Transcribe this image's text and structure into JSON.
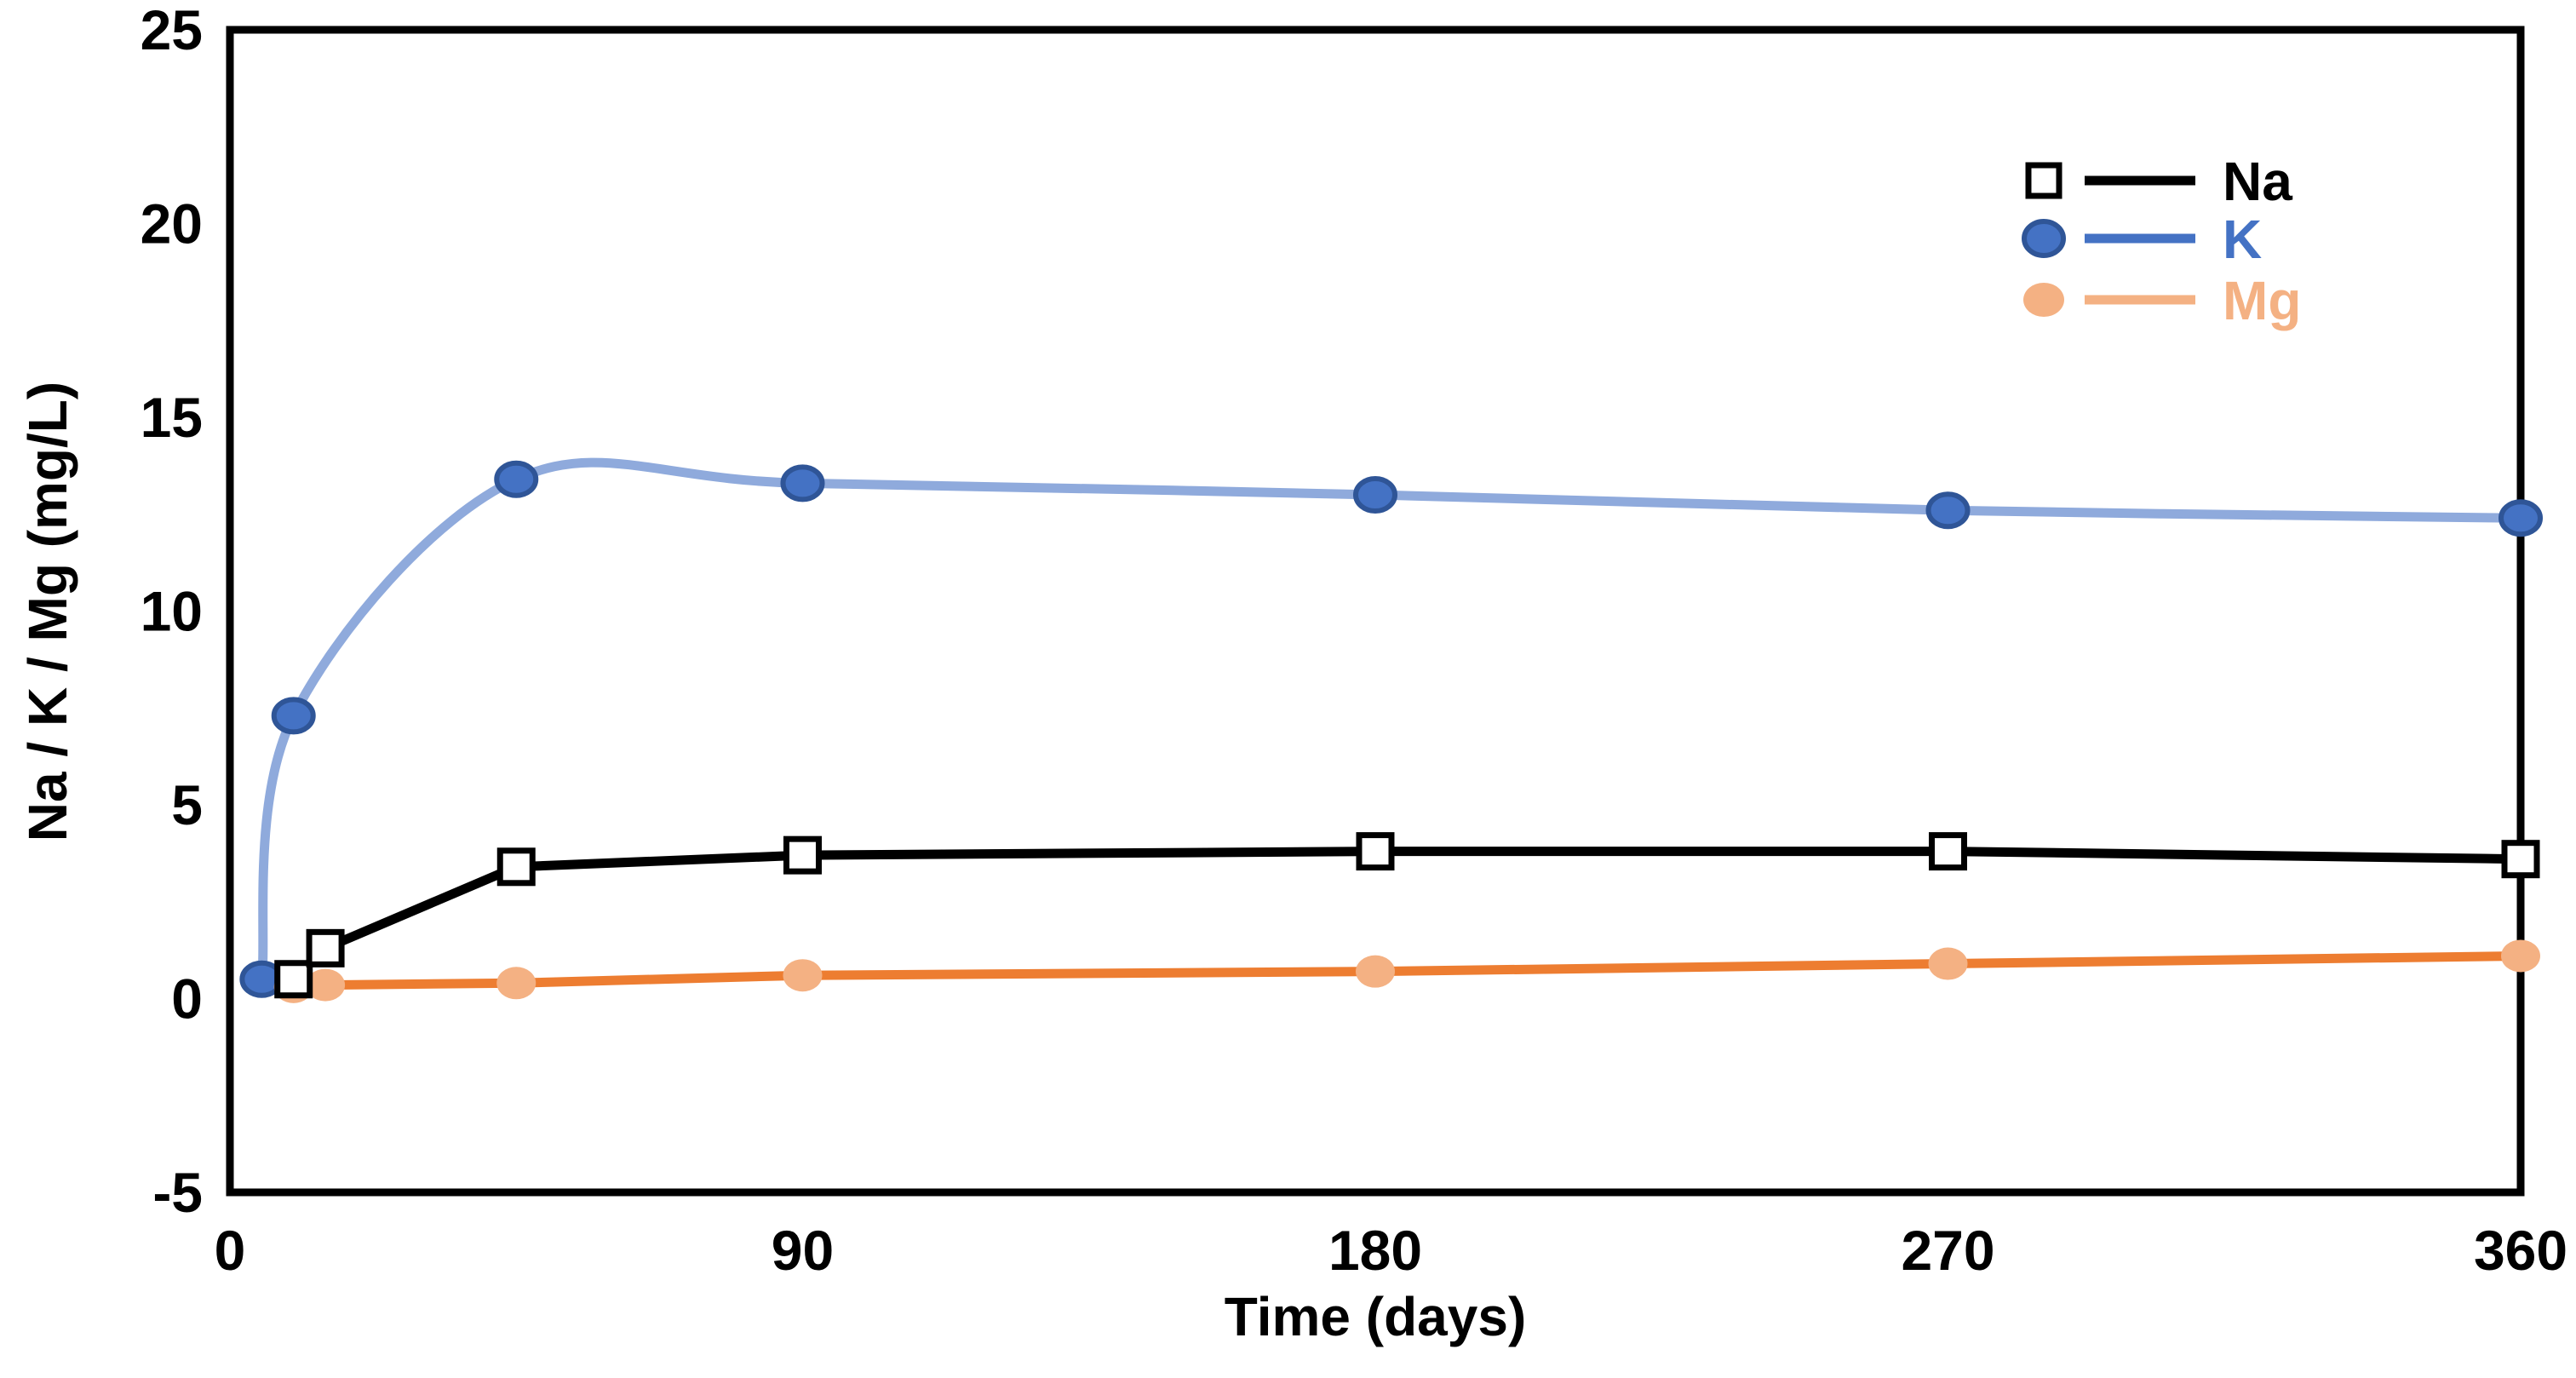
{
  "chart_data": {
    "type": "line",
    "title": "",
    "xlabel": "Time (days)",
    "ylabel": "Na / K / Mg (mg/L)",
    "xlim": [
      0,
      360
    ],
    "ylim": [
      -5,
      25
    ],
    "xticks": [
      0,
      90,
      180,
      270,
      360
    ],
    "yticks": [
      25,
      20,
      15,
      10,
      5,
      0,
      -5
    ],
    "grid": false,
    "legend_position": "top-right",
    "series": [
      {
        "name": "Na",
        "x": [
          10,
          15,
          45,
          90,
          180,
          270,
          360
        ],
        "values": [
          0.5,
          1.3,
          3.4,
          3.7,
          3.8,
          3.8,
          3.6
        ],
        "line_color": "#000000",
        "line_smooth": false,
        "marker_shape": "square",
        "marker_fill": "#FFFFFF",
        "marker_stroke": "#000000",
        "legend_line_color": "#000000",
        "label_color": "#000000"
      },
      {
        "name": "K",
        "x": [
          5,
          10,
          45,
          90,
          180,
          270,
          360
        ],
        "values": [
          0.5,
          7.3,
          13.4,
          13.3,
          13.0,
          12.6,
          12.4
        ],
        "line_color": "#8FAADC",
        "line_smooth": true,
        "marker_shape": "ellipse",
        "marker_fill": "#4472C4",
        "marker_stroke": "#2F5597",
        "legend_line_color": "#4472C4",
        "label_color": "#4472C4"
      },
      {
        "name": "Mg",
        "x": [
          10,
          15,
          45,
          90,
          180,
          270,
          360
        ],
        "values": [
          0.3,
          0.35,
          0.4,
          0.6,
          0.7,
          0.9,
          1.1
        ],
        "line_color": "#ED7D31",
        "line_smooth": false,
        "marker_shape": "ellipse",
        "marker_fill": "#F4B183",
        "marker_stroke": "none",
        "legend_line_color": "#F4B183",
        "label_color": "#F4B183"
      }
    ]
  }
}
